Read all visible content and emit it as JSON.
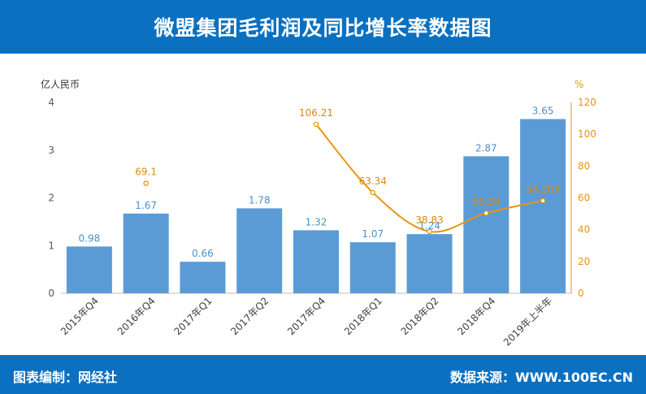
{
  "header": {
    "title": "微盟集团毛利润及同比增长率数据图"
  },
  "footer": {
    "left": "图表编制：网经社",
    "right": "数据来源：WWW.100EC.CN"
  },
  "colors": {
    "header_bg": "#0b70c0",
    "bar": "#5b9bd5",
    "line": "#e8950c",
    "bar_label": "#4a90c8",
    "line_label": "#d98a14",
    "axis_text": "#595959"
  },
  "chart_data": {
    "type": "bar",
    "categories": [
      "2015年Q4",
      "2016年Q4",
      "2017年Q1",
      "2017年Q2",
      "2017年Q4",
      "2018年Q1",
      "2018年Q2",
      "2018年Q4",
      "2019年上半年"
    ],
    "series": [
      {
        "name": "",
        "type": "bar",
        "axis": "left",
        "values": [
          0.98,
          1.67,
          0.66,
          1.78,
          1.32,
          1.07,
          1.24,
          2.87,
          3.65
        ]
      },
      {
        "name": "",
        "type": "line",
        "axis": "right",
        "values": [
          null,
          69.1,
          null,
          null,
          106.21,
          63.34,
          38.83,
          50.39,
          58.203
        ]
      }
    ],
    "y_left": {
      "unit": "亿人民币",
      "min": 0,
      "max": 4,
      "ticks": [
        0,
        1,
        2,
        3,
        4
      ]
    },
    "y_right": {
      "unit": "%",
      "min": 0,
      "max": 120,
      "ticks": [
        0,
        20,
        40,
        60,
        80,
        100,
        120
      ]
    },
    "grid": false,
    "legend": "none"
  }
}
